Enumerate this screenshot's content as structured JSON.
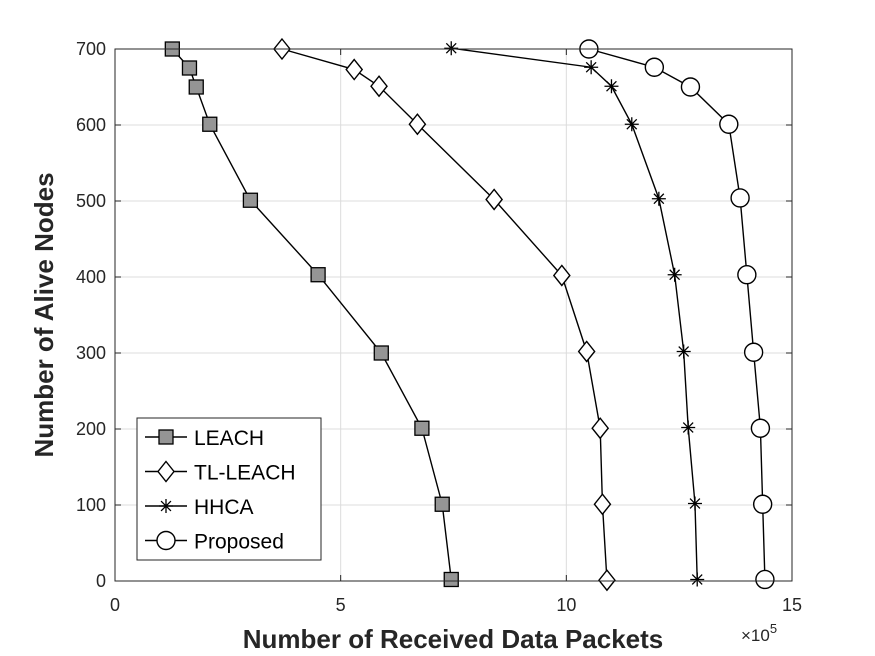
{
  "chart_data": {
    "type": "line",
    "xlabel": "Number of Received Data Packets",
    "ylabel": "Number of Alive Nodes",
    "x_multiplier": {
      "base": "×10",
      "exponent": "5"
    },
    "xlim": [
      0,
      15
    ],
    "ylim": [
      0,
      700
    ],
    "xticks": [
      0,
      5,
      10,
      15
    ],
    "yticks": [
      0,
      100,
      200,
      300,
      400,
      500,
      600,
      700
    ],
    "grid": true,
    "legend_position": "bottom-left",
    "series": [
      {
        "name": "LEACH",
        "marker": "square",
        "points": [
          [
            1.27,
            700
          ],
          [
            1.65,
            675
          ],
          [
            1.8,
            650
          ],
          [
            2.1,
            601
          ],
          [
            3.0,
            501
          ],
          [
            4.5,
            403
          ],
          [
            5.9,
            300
          ],
          [
            6.8,
            201
          ],
          [
            7.25,
            101
          ],
          [
            7.45,
            2
          ]
        ]
      },
      {
        "name": "TL-LEACH",
        "marker": "diamond",
        "points": [
          [
            3.7,
            700
          ],
          [
            5.3,
            673
          ],
          [
            5.85,
            651
          ],
          [
            6.7,
            601
          ],
          [
            8.4,
            502
          ],
          [
            9.9,
            402
          ],
          [
            10.45,
            302
          ],
          [
            10.75,
            201
          ],
          [
            10.8,
            101
          ],
          [
            10.9,
            1
          ]
        ]
      },
      {
        "name": "HHCA",
        "marker": "asterisk",
        "points": [
          [
            7.45,
            701
          ],
          [
            10.55,
            676
          ],
          [
            11.0,
            651
          ],
          [
            11.45,
            601
          ],
          [
            12.05,
            503
          ],
          [
            12.4,
            403
          ],
          [
            12.6,
            302
          ],
          [
            12.7,
            202
          ],
          [
            12.85,
            102
          ],
          [
            12.9,
            2
          ]
        ]
      },
      {
        "name": "Proposed",
        "marker": "circle",
        "points": [
          [
            10.5,
            700
          ],
          [
            11.95,
            676
          ],
          [
            12.75,
            650
          ],
          [
            13.6,
            601
          ],
          [
            13.85,
            504
          ],
          [
            14.0,
            403
          ],
          [
            14.15,
            301
          ],
          [
            14.3,
            201
          ],
          [
            14.35,
            101
          ],
          [
            14.4,
            2
          ]
        ]
      }
    ]
  }
}
